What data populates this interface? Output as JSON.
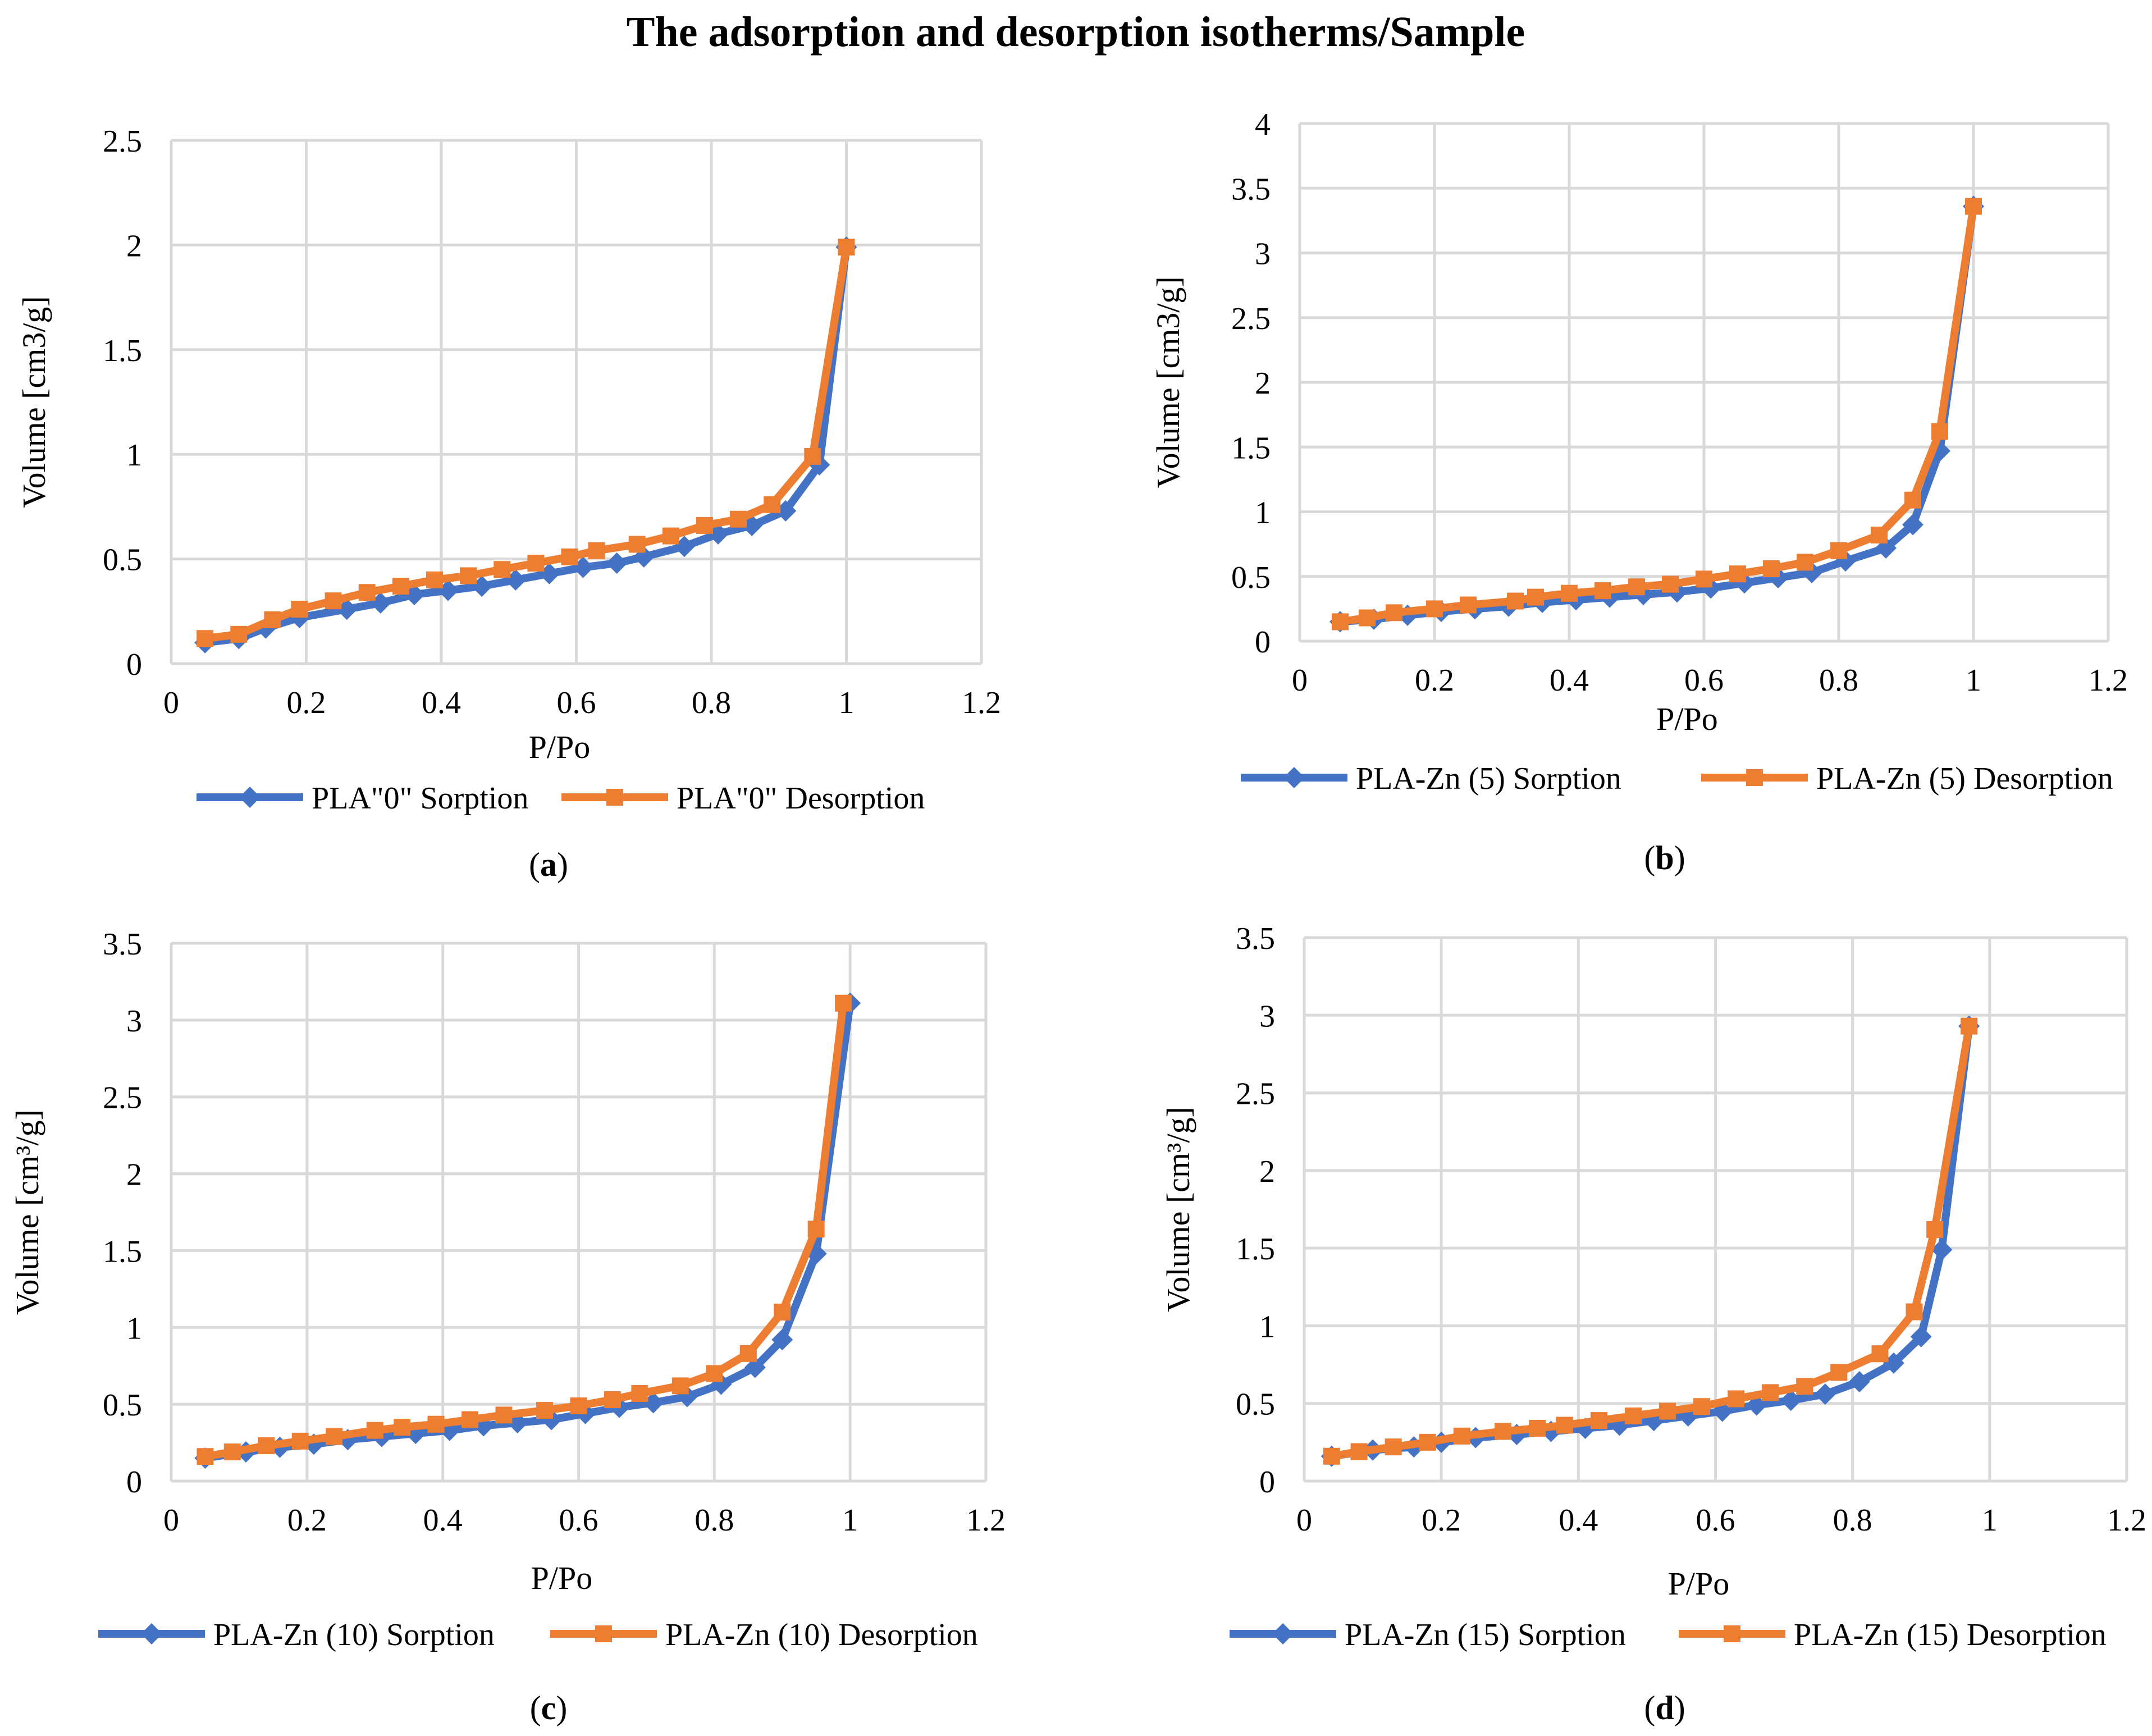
{
  "title": "The adsorption and desorption isotherms/Sample",
  "colors": {
    "sorption": "#4472C4",
    "desorption": "#ED7D31",
    "grid": "#D9D9D9",
    "text": "#000000"
  },
  "chart_data": [
    {
      "type": "line",
      "panel": "a",
      "xlabel": "P/Po",
      "ylabel": "Volume [cm3/g]",
      "xlim": [
        0,
        1.2
      ],
      "xticks": [
        0,
        0.2,
        0.4,
        0.6,
        0.8,
        1,
        1.2
      ],
      "ylim": [
        0,
        2.5
      ],
      "yticks": [
        0,
        0.5,
        1,
        1.5,
        2,
        2.5
      ],
      "grid": true,
      "legend": "bottom",
      "series": [
        {
          "name": "PLA\"0\" Sorption",
          "x": [
            0.05,
            0.1,
            0.14,
            0.19,
            0.26,
            0.31,
            0.36,
            0.41,
            0.46,
            0.51,
            0.56,
            0.61,
            0.66,
            0.7,
            0.76,
            0.81,
            0.86,
            0.91,
            0.96,
            1.0
          ],
          "y": [
            0.1,
            0.12,
            0.17,
            0.22,
            0.26,
            0.29,
            0.33,
            0.35,
            0.37,
            0.4,
            0.43,
            0.46,
            0.48,
            0.51,
            0.56,
            0.62,
            0.66,
            0.73,
            0.95,
            1.99
          ]
        },
        {
          "name": "PLA\"0\" Desorption",
          "x": [
            0.05,
            0.1,
            0.15,
            0.19,
            0.24,
            0.29,
            0.34,
            0.39,
            0.44,
            0.49,
            0.54,
            0.59,
            0.63,
            0.69,
            0.74,
            0.79,
            0.84,
            0.89,
            0.95,
            1.0
          ],
          "y": [
            0.12,
            0.14,
            0.21,
            0.26,
            0.3,
            0.34,
            0.37,
            0.4,
            0.42,
            0.45,
            0.48,
            0.51,
            0.54,
            0.57,
            0.61,
            0.66,
            0.69,
            0.76,
            0.99,
            1.99
          ]
        }
      ]
    },
    {
      "type": "line",
      "panel": "b",
      "xlabel": "P/Po",
      "ylabel": "Volume [cm3/g]",
      "xlim": [
        0,
        1.2
      ],
      "xticks": [
        0,
        0.2,
        0.4,
        0.6,
        0.8,
        1,
        1.2
      ],
      "ylim": [
        0,
        4
      ],
      "yticks": [
        0,
        0.5,
        1,
        1.5,
        2,
        2.5,
        3,
        3.5,
        4
      ],
      "grid": true,
      "legend": "bottom",
      "series": [
        {
          "name": "PLA-Zn (5) Sorption",
          "x": [
            0.06,
            0.11,
            0.16,
            0.21,
            0.26,
            0.31,
            0.36,
            0.41,
            0.46,
            0.51,
            0.56,
            0.61,
            0.66,
            0.71,
            0.76,
            0.81,
            0.87,
            0.91,
            0.95,
            1.0
          ],
          "y": [
            0.15,
            0.17,
            0.2,
            0.23,
            0.25,
            0.27,
            0.3,
            0.32,
            0.34,
            0.36,
            0.38,
            0.41,
            0.45,
            0.49,
            0.53,
            0.62,
            0.72,
            0.9,
            1.47,
            3.36
          ]
        },
        {
          "name": "PLA-Zn (5) Desorption",
          "x": [
            0.06,
            0.1,
            0.14,
            0.2,
            0.25,
            0.32,
            0.35,
            0.4,
            0.45,
            0.5,
            0.55,
            0.6,
            0.65,
            0.7,
            0.75,
            0.8,
            0.86,
            0.91,
            0.95,
            1.0
          ],
          "y": [
            0.15,
            0.18,
            0.22,
            0.25,
            0.28,
            0.31,
            0.34,
            0.37,
            0.39,
            0.42,
            0.44,
            0.48,
            0.52,
            0.56,
            0.61,
            0.7,
            0.82,
            1.09,
            1.62,
            3.36
          ]
        }
      ]
    },
    {
      "type": "line",
      "panel": "c",
      "xlabel": "P/Po",
      "ylabel": "Volume [cm³/g]",
      "xlim": [
        0,
        1.2
      ],
      "xticks": [
        0,
        0.2,
        0.4,
        0.6,
        0.8,
        1,
        1.2
      ],
      "ylim": [
        0,
        3.5
      ],
      "yticks": [
        0,
        0.5,
        1,
        1.5,
        2,
        2.5,
        3,
        3.5
      ],
      "grid": true,
      "legend": "bottom",
      "series": [
        {
          "name": "PLA-Zn (10) Sorption",
          "x": [
            0.05,
            0.11,
            0.16,
            0.21,
            0.26,
            0.31,
            0.36,
            0.41,
            0.46,
            0.51,
            0.56,
            0.61,
            0.66,
            0.71,
            0.76,
            0.81,
            0.86,
            0.9,
            0.95,
            1.0
          ],
          "y": [
            0.15,
            0.19,
            0.22,
            0.24,
            0.27,
            0.29,
            0.31,
            0.33,
            0.36,
            0.38,
            0.4,
            0.44,
            0.48,
            0.51,
            0.55,
            0.63,
            0.74,
            0.92,
            1.48,
            3.11
          ]
        },
        {
          "name": "PLA-Zn (10) Desorption",
          "x": [
            0.05,
            0.09,
            0.14,
            0.19,
            0.24,
            0.3,
            0.34,
            0.39,
            0.44,
            0.49,
            0.55,
            0.6,
            0.65,
            0.69,
            0.75,
            0.8,
            0.85,
            0.9,
            0.95,
            0.99
          ],
          "y": [
            0.16,
            0.19,
            0.23,
            0.26,
            0.29,
            0.33,
            0.35,
            0.37,
            0.4,
            0.43,
            0.46,
            0.49,
            0.53,
            0.57,
            0.62,
            0.7,
            0.83,
            1.1,
            1.64,
            3.11
          ]
        }
      ]
    },
    {
      "type": "line",
      "panel": "d",
      "xlabel": "P/Po",
      "ylabel": "Volume [cm³/g]",
      "xlim": [
        0,
        1.2
      ],
      "xticks": [
        0,
        0.2,
        0.4,
        0.6,
        0.8,
        1,
        1.2
      ],
      "ylim": [
        0,
        3.5
      ],
      "yticks": [
        0,
        0.5,
        1,
        1.5,
        2,
        2.5,
        3,
        3.5
      ],
      "grid": true,
      "legend": "bottom",
      "series": [
        {
          "name": "PLA-Zn (15) Sorption",
          "x": [
            0.04,
            0.1,
            0.16,
            0.2,
            0.25,
            0.31,
            0.36,
            0.41,
            0.46,
            0.51,
            0.56,
            0.61,
            0.66,
            0.71,
            0.76,
            0.81,
            0.86,
            0.9,
            0.93,
            0.97
          ],
          "y": [
            0.16,
            0.2,
            0.22,
            0.25,
            0.28,
            0.3,
            0.32,
            0.34,
            0.36,
            0.39,
            0.42,
            0.45,
            0.49,
            0.52,
            0.56,
            0.64,
            0.76,
            0.93,
            1.49,
            2.93
          ]
        },
        {
          "name": "PLA-Zn (15) Desorption",
          "x": [
            0.04,
            0.08,
            0.13,
            0.18,
            0.23,
            0.29,
            0.34,
            0.38,
            0.43,
            0.48,
            0.53,
            0.58,
            0.63,
            0.68,
            0.73,
            0.78,
            0.84,
            0.89,
            0.92,
            0.97
          ],
          "y": [
            0.16,
            0.19,
            0.22,
            0.25,
            0.29,
            0.32,
            0.34,
            0.36,
            0.39,
            0.42,
            0.45,
            0.48,
            0.53,
            0.57,
            0.61,
            0.7,
            0.82,
            1.09,
            1.62,
            2.93
          ]
        }
      ]
    }
  ]
}
